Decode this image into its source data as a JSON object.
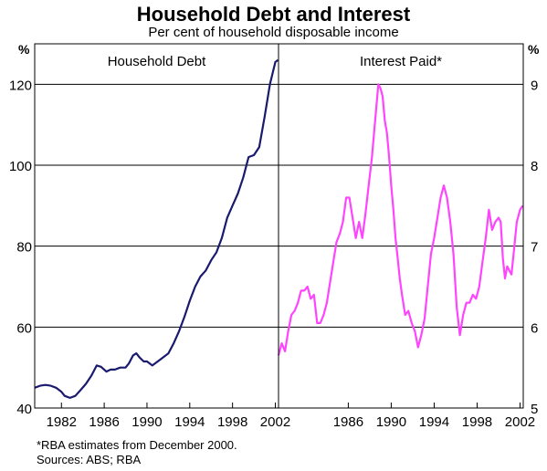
{
  "title": "Household Debt and Interest",
  "subtitle": "Per cent of household disposable income",
  "unit_left": "%",
  "unit_right": "%",
  "footnote": "*RBA estimates from December 2000.",
  "sources": "Sources: ABS; RBA",
  "colors": {
    "debt": "#1a1a6e",
    "interest": "#ff44ff",
    "grid": "#000000"
  },
  "chart_data": [
    {
      "type": "line",
      "title": "Household Debt",
      "ylim": [
        40,
        130
      ],
      "yticks": [
        "40",
        "60",
        "80",
        "100",
        "120"
      ],
      "xlim": [
        1979.5,
        2002.3
      ],
      "xticks": [
        "1982",
        "1986",
        "1990",
        "1994",
        "1998",
        "2002"
      ],
      "series": [
        {
          "x": [
            1979.5,
            1980,
            1980.5,
            1981,
            1981.5,
            1982,
            1982.3,
            1982.8,
            1983.3,
            1983.8,
            1984.3,
            1984.8,
            1985.3,
            1985.7,
            1986.2,
            1986.6,
            1987,
            1987.5,
            1988,
            1988.3,
            1988.7,
            1989,
            1989.3,
            1989.7,
            1990,
            1990.5,
            1991,
            1991.5,
            1992,
            1992.5,
            1993,
            1993.5,
            1994,
            1994.5,
            1995,
            1995.5,
            1996,
            1996.5,
            1997,
            1997.5,
            1998,
            1998.5,
            1999,
            1999.5,
            2000,
            2000.5,
            2001,
            2001.5,
            2002,
            2002.25
          ],
          "values": [
            45,
            45.5,
            45.7,
            45.5,
            45,
            44,
            43,
            42.5,
            43,
            44.5,
            46,
            48,
            50.5,
            50.2,
            49,
            49.5,
            49.5,
            50,
            50,
            51,
            53,
            53.5,
            52.5,
            51.5,
            51.5,
            50.5,
            51.5,
            52.5,
            53.5,
            56,
            59,
            62.5,
            66.5,
            70,
            72.5,
            74,
            76.5,
            78.5,
            82,
            87,
            90,
            93,
            97,
            102,
            102.5,
            104.5,
            112,
            120,
            125.5,
            126
          ]
        }
      ]
    },
    {
      "type": "line",
      "title": "Interest Paid*",
      "ylim": [
        5,
        9.5
      ],
      "yticks": [
        "5",
        "6",
        "7",
        "8",
        "9"
      ],
      "xlim": [
        1979.5,
        2002.3
      ],
      "xticks": [
        "1986",
        "1990",
        "1994",
        "1998",
        "2002"
      ],
      "series": [
        {
          "x": [
            1979.5,
            1979.8,
            1980.1,
            1980.4,
            1980.7,
            1981,
            1981.3,
            1981.6,
            1981.9,
            1982.2,
            1982.5,
            1982.8,
            1983.1,
            1983.4,
            1983.7,
            1984,
            1984.3,
            1984.6,
            1984.9,
            1985.2,
            1985.5,
            1985.8,
            1986.1,
            1986.4,
            1986.7,
            1987,
            1987.3,
            1987.6,
            1987.9,
            1988.2,
            1988.5,
            1988.8,
            1989,
            1989.2,
            1989.4,
            1989.6,
            1989.8,
            1990,
            1990.2,
            1990.4,
            1990.6,
            1990.8,
            1991,
            1991.3,
            1991.6,
            1991.9,
            1992.2,
            1992.5,
            1992.8,
            1993.1,
            1993.4,
            1993.7,
            1994,
            1994.3,
            1994.6,
            1994.9,
            1995.2,
            1995.5,
            1995.8,
            1996.1,
            1996.4,
            1996.7,
            1997,
            1997.3,
            1997.6,
            1997.9,
            1998.2,
            1998.5,
            1998.8,
            1999.1,
            1999.4,
            1999.7,
            2000,
            2000.2,
            2000.4,
            2000.6,
            2000.8,
            2001,
            2001.2,
            2001.4,
            2001.7,
            2002,
            2002.25
          ],
          "values": [
            5.65,
            5.8,
            5.7,
            5.95,
            6.15,
            6.2,
            6.3,
            6.45,
            6.45,
            6.5,
            6.35,
            6.4,
            6.05,
            6.05,
            6.15,
            6.3,
            6.55,
            6.8,
            7.05,
            7.15,
            7.3,
            7.6,
            7.6,
            7.35,
            7.1,
            7.3,
            7.1,
            7.4,
            7.75,
            8.1,
            8.55,
            9,
            8.95,
            8.85,
            8.55,
            8.4,
            8.1,
            7.75,
            7.45,
            7.1,
            6.85,
            6.6,
            6.4,
            6.15,
            6.2,
            6.05,
            5.95,
            5.75,
            5.9,
            6.1,
            6.5,
            6.9,
            7.1,
            7.35,
            7.6,
            7.75,
            7.6,
            7.3,
            6.9,
            6.25,
            5.9,
            6.15,
            6.3,
            6.3,
            6.4,
            6.35,
            6.5,
            6.8,
            7.1,
            7.45,
            7.2,
            7.3,
            7.35,
            7.3,
            6.85,
            6.6,
            6.75,
            6.7,
            6.65,
            6.9,
            7.3,
            7.45,
            7.5
          ]
        }
      ]
    }
  ]
}
